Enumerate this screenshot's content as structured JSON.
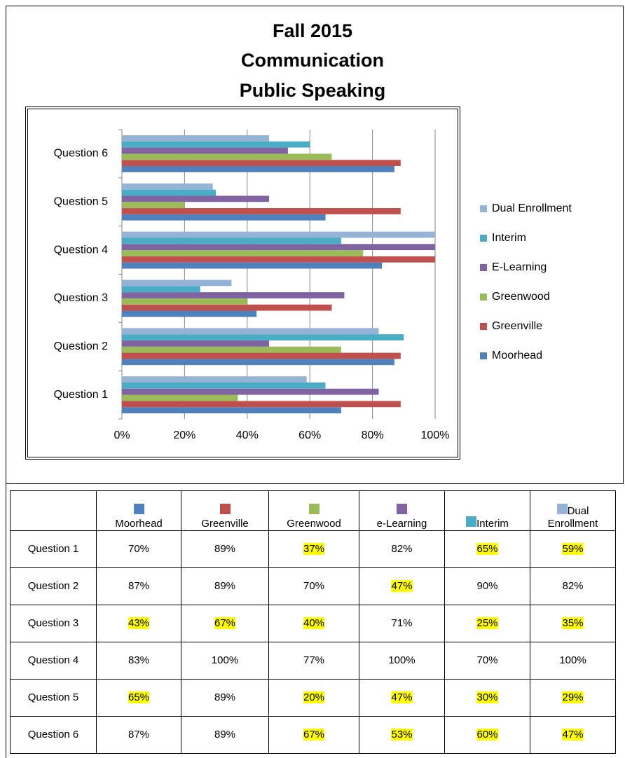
{
  "chart_data": {
    "type": "bar",
    "orientation": "horizontal",
    "title": [
      "Fall 2015",
      "Communication",
      "Public Speaking"
    ],
    "categories": [
      "Question 1",
      "Question 2",
      "Question 3",
      "Question 4",
      "Question 5",
      "Question 6"
    ],
    "series": [
      {
        "name": "Moorhead",
        "color": "#4f81bd",
        "values": [
          70,
          87,
          43,
          83,
          65,
          87
        ]
      },
      {
        "name": "Greenville",
        "color": "#c0504d",
        "values": [
          89,
          89,
          67,
          100,
          89,
          89
        ]
      },
      {
        "name": "Greenwood",
        "color": "#9bbb59",
        "values": [
          37,
          70,
          40,
          77,
          20,
          67
        ]
      },
      {
        "name": "E-Learning",
        "color": "#8064a2",
        "values": [
          82,
          47,
          71,
          100,
          47,
          53
        ]
      },
      {
        "name": "Interim",
        "color": "#4bacc6",
        "values": [
          65,
          90,
          25,
          70,
          30,
          60
        ]
      },
      {
        "name": "Dual Enrollment",
        "color": "#95b3d7",
        "values": [
          59,
          82,
          35,
          100,
          29,
          47
        ]
      }
    ],
    "xlim": [
      0,
      100
    ],
    "xticks": [
      {
        "value": 0,
        "label": "0%"
      },
      {
        "value": 20,
        "label": "20%"
      },
      {
        "value": 40,
        "label": "40%"
      },
      {
        "value": 60,
        "label": "60%"
      },
      {
        "value": 80,
        "label": "80%"
      },
      {
        "value": 100,
        "label": "100%"
      }
    ],
    "grid": true,
    "legend": "right"
  },
  "table": {
    "columns": [
      "Moorhead",
      "Greenville",
      "Greenwood",
      "e-Learning",
      "Interim",
      "Dual Enrollment"
    ],
    "rows": [
      {
        "label": "Question 1",
        "cells": [
          "70%",
          "89%",
          "37%",
          "82%",
          "65%",
          "59%"
        ],
        "highlighted": [
          false,
          false,
          true,
          false,
          true,
          true
        ]
      },
      {
        "label": "Question 2",
        "cells": [
          "87%",
          "89%",
          "70%",
          "47%",
          "90%",
          "82%"
        ],
        "highlighted": [
          false,
          false,
          false,
          true,
          false,
          false
        ]
      },
      {
        "label": "Question 3",
        "cells": [
          "43%",
          "67%",
          "40%",
          "71%",
          "25%",
          "35%"
        ],
        "highlighted": [
          true,
          true,
          true,
          false,
          true,
          true
        ]
      },
      {
        "label": "Question 4",
        "cells": [
          "83%",
          "100%",
          "77%",
          "100%",
          "70%",
          "100%"
        ],
        "highlighted": [
          false,
          false,
          false,
          false,
          false,
          false
        ]
      },
      {
        "label": "Question 5",
        "cells": [
          "65%",
          "89%",
          "20%",
          "47%",
          "30%",
          "29%"
        ],
        "highlighted": [
          true,
          false,
          true,
          true,
          true,
          true
        ]
      },
      {
        "label": "Question 6",
        "cells": [
          "87%",
          "89%",
          "67%",
          "53%",
          "60%",
          "47%"
        ],
        "highlighted": [
          false,
          false,
          true,
          true,
          true,
          true
        ]
      }
    ]
  }
}
